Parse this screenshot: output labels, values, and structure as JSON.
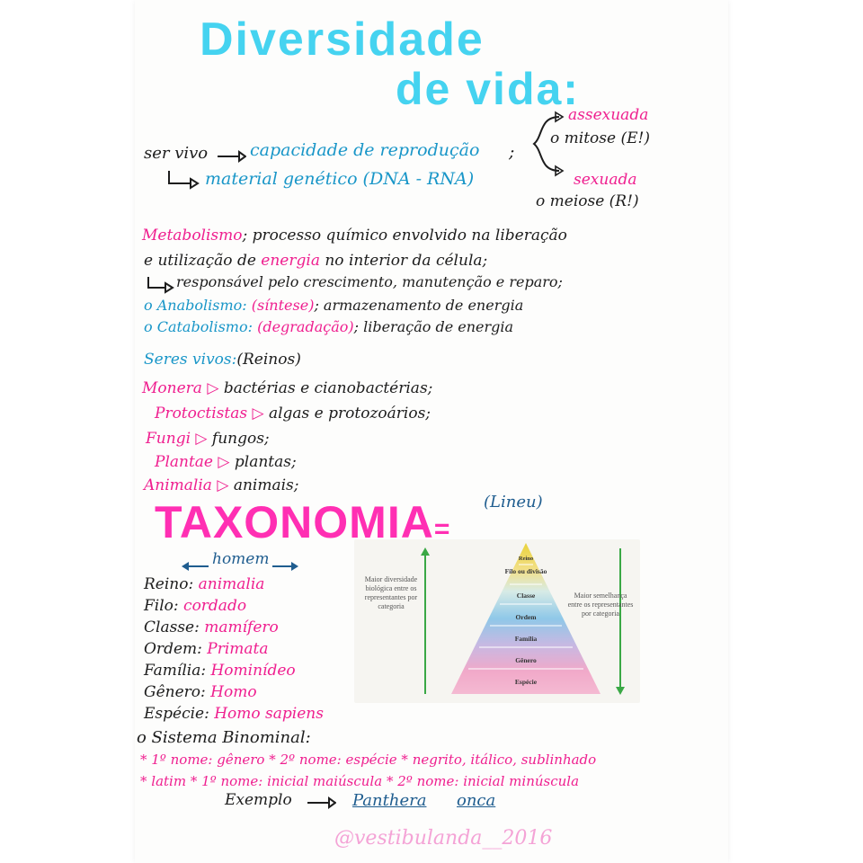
{
  "title": {
    "line1": "Diversidade",
    "line2": "de vida:"
  },
  "reproducao": {
    "ser_vivo": "ser vivo",
    "capacidade": "capacidade de reprodução",
    "semi": ";",
    "material": "material genético (DNA - RNA)",
    "assexuada": "assexuada",
    "mitose": "o mitose (E!)",
    "sexuada": "sexuada",
    "meiose": "o meiose (R!)"
  },
  "metabolismo": {
    "term": "Metabolismo",
    "rest1": "; processo químico envolvido na liberação",
    "line2_a": "e utilização de",
    "energia": "energia",
    "line2_b": "no interior da célula;",
    "line3": "responsável pelo crescimento, manutenção e reparo;",
    "anabolismo": "o Anabolismo:",
    "sintese": "(síntese)",
    "anab_rest": "; armazenamento de energia",
    "catabolismo": "o Catabolismo:",
    "degradacao": "(degradação)",
    "catab_rest": "; liberação de energia"
  },
  "reinos": {
    "heading": "Seres vivos:",
    "heading_rest": "(Reinos)",
    "items": [
      {
        "name": "Monera",
        "desc": "bactérias e cianobactérias;"
      },
      {
        "name": "Protoctistas",
        "desc": "algas e protozoários;"
      },
      {
        "name": "Fungi",
        "desc": "fungos;"
      },
      {
        "name": "Plantae",
        "desc": "plantas;"
      },
      {
        "name": "Animalia",
        "desc": "animais;"
      }
    ]
  },
  "taxonomia": {
    "title": "TAXONOMIA",
    "suffix": "=",
    "author": "(Lineu)",
    "homem": "homem",
    "ranks": [
      {
        "rank": "Reino:",
        "value": "animalia"
      },
      {
        "rank": "Filo:",
        "value": "cordado"
      },
      {
        "rank": "Classe:",
        "value": "mamífero"
      },
      {
        "rank": "Ordem:",
        "value": "Primata"
      },
      {
        "rank": "Família:",
        "value": "Hominídeo"
      },
      {
        "rank": "Gênero:",
        "value": "Homo"
      },
      {
        "rank": "Espécie:",
        "value": "Homo sapiens"
      }
    ]
  },
  "figure": {
    "left_label": "Maior diversidade biológica entre os representantes por categoria",
    "right_label": "Maior semelhança entre os representantes por categoria",
    "levels": [
      "Reino",
      "Filo ou divisão",
      "Classe",
      "Ordem",
      "Família",
      "Gênero",
      "Espécie"
    ]
  },
  "binominal": {
    "heading": "o Sistema Binominal:",
    "line1_a": "* 1º nome: gênero",
    "line1_b": "* 2º nome: espécie",
    "line1_c": "* negrito, itálico, sublinhado",
    "line2_a": "* latim",
    "line2_b": "* 1º nome: inicial maiúscula",
    "line2_c": "* 2º nome: inicial minúscula",
    "exemplo": "Exemplo",
    "genus": "Panthera",
    "species": "onca"
  },
  "watermark": "@vestibulanda__2016"
}
